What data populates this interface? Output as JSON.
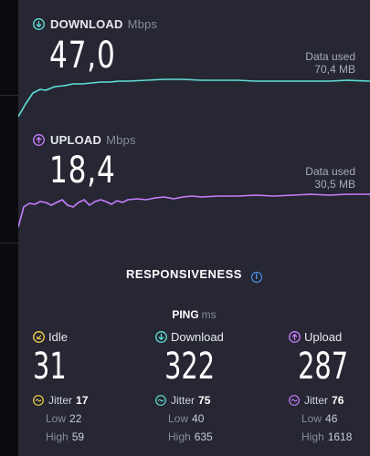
{
  "colors": {
    "download": "#5ee0d6",
    "upload": "#c77dff",
    "idle": "#f6d14a",
    "info": "#4aa3ff"
  },
  "download": {
    "title": "DOWNLOAD",
    "unit": "Mbps",
    "value": "47,0",
    "used_label": "Data used",
    "used_value": "70,4 MB",
    "icon": "download-arrow-icon"
  },
  "upload": {
    "title": "UPLOAD",
    "unit": "Mbps",
    "value": "18,4",
    "used_label": "Data used",
    "used_value": "30,5 MB",
    "icon": "upload-arrow-icon"
  },
  "responsiveness": {
    "title": "RESPONSIVENESS",
    "ping_label": "PING",
    "ping_unit": "ms",
    "columns": [
      {
        "label": "Idle",
        "value": "31",
        "jitter_label": "Jitter",
        "jitter": "17",
        "low_label": "Low",
        "low": "22",
        "high_label": "High",
        "high": "59"
      },
      {
        "label": "Download",
        "value": "322",
        "jitter_label": "Jitter",
        "jitter": "75",
        "low_label": "Low",
        "low": "40",
        "high_label": "High",
        "high": "635"
      },
      {
        "label": "Upload",
        "value": "287",
        "jitter_label": "Jitter",
        "jitter": "76",
        "low_label": "Low",
        "low": "46",
        "high_label": "High",
        "high": "1618"
      }
    ]
  }
}
